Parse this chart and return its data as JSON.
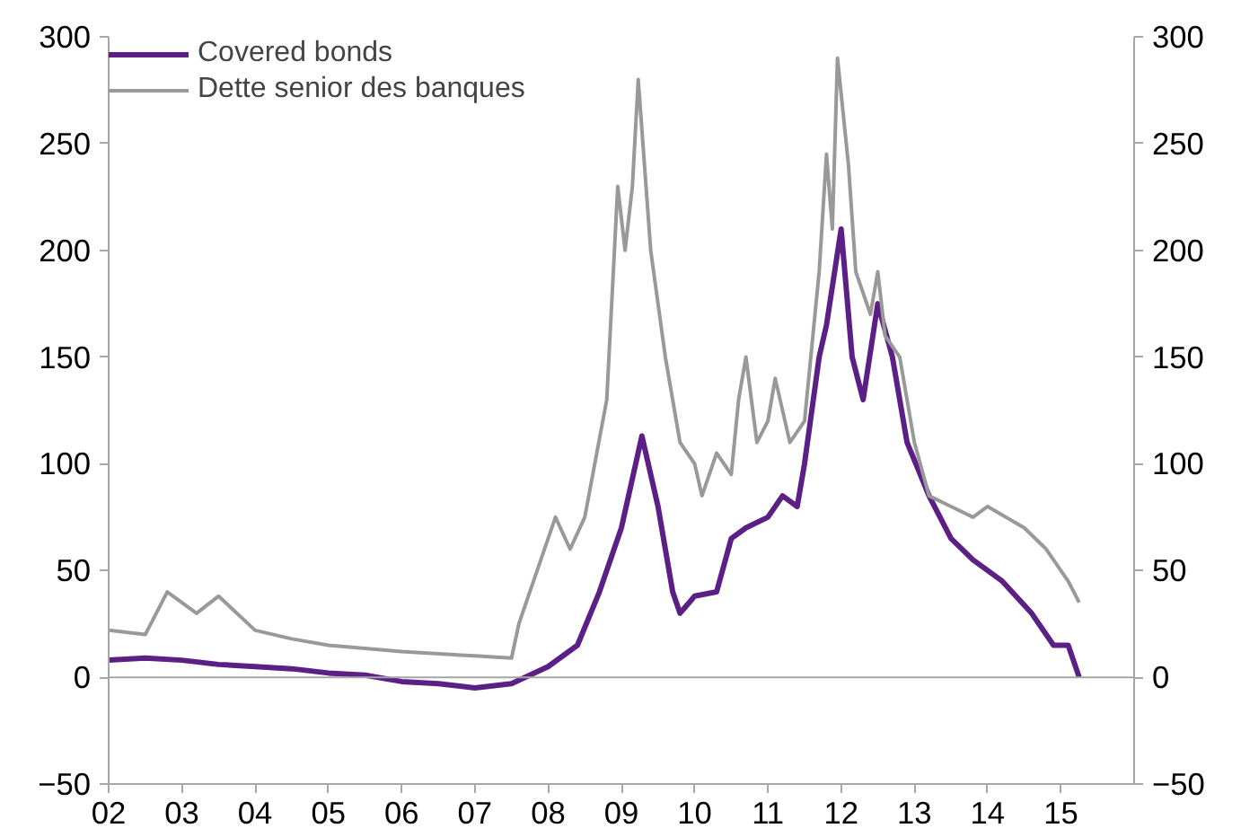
{
  "chart_data": {
    "type": "line",
    "xlim": [
      2002,
      2016
    ],
    "ylim": [
      -50,
      300
    ],
    "y2lim": [
      -50,
      300
    ],
    "xticks": [
      {
        "value": 2002,
        "label": "02"
      },
      {
        "value": 2003,
        "label": "03"
      },
      {
        "value": 2004,
        "label": "04"
      },
      {
        "value": 2005,
        "label": "05"
      },
      {
        "value": 2006,
        "label": "06"
      },
      {
        "value": 2007,
        "label": "07"
      },
      {
        "value": 2008,
        "label": "08"
      },
      {
        "value": 2009,
        "label": "09"
      },
      {
        "value": 2010,
        "label": "10"
      },
      {
        "value": 2011,
        "label": "11"
      },
      {
        "value": 2012,
        "label": "12"
      },
      {
        "value": 2013,
        "label": "13"
      },
      {
        "value": 2014,
        "label": "14"
      },
      {
        "value": 2015,
        "label": "15"
      }
    ],
    "yticks": [
      -50,
      0,
      50,
      100,
      150,
      200,
      250,
      300
    ],
    "y2ticks": [
      -50,
      0,
      50,
      100,
      150,
      200,
      250,
      300
    ],
    "ref_lines": [
      {
        "axis": "y",
        "value": 0,
        "color": "#a6a6a6"
      }
    ],
    "legend": "top left",
    "grid": false,
    "marker": "none",
    "series": [
      {
        "name": "Covered bonds",
        "color": "#5b1f86",
        "x": [
          2002,
          2002.5,
          2003,
          2003.5,
          2004,
          2004.5,
          2005,
          2005.5,
          2006,
          2006.5,
          2007,
          2007.5,
          2008,
          2008.4,
          2008.7,
          2009.0,
          2009.28,
          2009.5,
          2009.7,
          2009.8,
          2010.0,
          2010.3,
          2010.5,
          2010.7,
          2011.0,
          2011.2,
          2011.4,
          2011.5,
          2011.7,
          2011.8,
          2012.0,
          2012.15,
          2012.3,
          2012.5,
          2012.7,
          2012.9,
          2013.2,
          2013.5,
          2013.8,
          2014.2,
          2014.6,
          2014.9,
          2015.1,
          2015.25
        ],
        "values": [
          8,
          9,
          8,
          6,
          5,
          4,
          2,
          1,
          -2,
          -3,
          -5,
          -3,
          5,
          15,
          40,
          70,
          113,
          80,
          40,
          30,
          38,
          40,
          65,
          70,
          75,
          85,
          80,
          100,
          150,
          165,
          210,
          150,
          130,
          175,
          150,
          110,
          85,
          65,
          55,
          45,
          30,
          15,
          15,
          0
        ]
      },
      {
        "name": "Dette senior des banques",
        "color": "#999999",
        "x": [
          2002,
          2002.5,
          2002.8,
          2003.2,
          2003.5,
          2004,
          2004.5,
          2005,
          2006,
          2007,
          2007.5,
          2007.6,
          2007.9,
          2008.1,
          2008.3,
          2008.5,
          2008.8,
          2008.95,
          2009.05,
          2009.15,
          2009.23,
          2009.4,
          2009.6,
          2009.8,
          2010.0,
          2010.1,
          2010.3,
          2010.5,
          2010.6,
          2010.7,
          2010.85,
          2011.0,
          2011.1,
          2011.3,
          2011.5,
          2011.7,
          2011.8,
          2011.88,
          2011.95,
          2012.1,
          2012.2,
          2012.4,
          2012.5,
          2012.6,
          2012.8,
          2013.0,
          2013.2,
          2013.5,
          2013.8,
          2014.0,
          2014.5,
          2014.8,
          2015.0,
          2015.1,
          2015.25
        ],
        "values": [
          22,
          20,
          40,
          30,
          38,
          22,
          18,
          15,
          12,
          10,
          9,
          25,
          55,
          75,
          60,
          75,
          130,
          230,
          200,
          230,
          280,
          200,
          150,
          110,
          100,
          85,
          105,
          95,
          130,
          150,
          110,
          120,
          140,
          110,
          120,
          190,
          245,
          210,
          290,
          240,
          190,
          170,
          190,
          160,
          150,
          110,
          85,
          80,
          75,
          80,
          70,
          60,
          50,
          45,
          35
        ]
      }
    ]
  }
}
